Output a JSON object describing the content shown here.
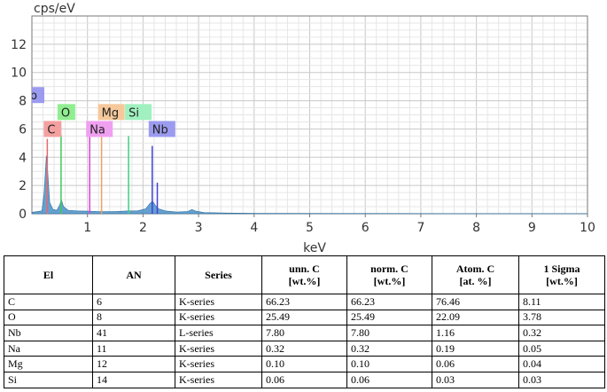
{
  "chart_data": {
    "type": "area",
    "ylabel": "cps/eV",
    "xlabel": "keV",
    "xlim": [
      0,
      10
    ],
    "ylim": [
      0,
      14
    ],
    "x_ticks": [
      "1",
      "2",
      "3",
      "4",
      "5",
      "6",
      "7",
      "8",
      "9",
      "10"
    ],
    "y_ticks": [
      "0",
      "2",
      "4",
      "6",
      "8",
      "10",
      "12"
    ],
    "grid": true,
    "fill_color": "#4a90c8",
    "spectrum": [
      [
        0.0,
        0.1
      ],
      [
        0.18,
        0.2
      ],
      [
        0.22,
        1.5
      ],
      [
        0.26,
        4.1
      ],
      [
        0.28,
        3.2
      ],
      [
        0.32,
        0.8
      ],
      [
        0.38,
        0.3
      ],
      [
        0.45,
        0.25
      ],
      [
        0.5,
        0.6
      ],
      [
        0.53,
        1.0
      ],
      [
        0.57,
        0.5
      ],
      [
        0.65,
        0.25
      ],
      [
        0.8,
        0.2
      ],
      [
        1.0,
        0.18
      ],
      [
        1.2,
        0.16
      ],
      [
        1.5,
        0.15
      ],
      [
        1.74,
        0.2
      ],
      [
        1.9,
        0.2
      ],
      [
        2.05,
        0.35
      ],
      [
        2.12,
        0.7
      ],
      [
        2.17,
        0.9
      ],
      [
        2.22,
        0.6
      ],
      [
        2.28,
        0.35
      ],
      [
        2.4,
        0.2
      ],
      [
        2.6,
        0.12
      ],
      [
        2.8,
        0.15
      ],
      [
        2.88,
        0.3
      ],
      [
        2.95,
        0.18
      ],
      [
        3.1,
        0.08
      ],
      [
        3.5,
        0.05
      ],
      [
        4.0,
        0.03
      ],
      [
        6.0,
        0.02
      ],
      [
        10.0,
        0.01
      ]
    ],
    "lines": [
      {
        "element": "C",
        "energy": 0.277,
        "height": 5.3,
        "color": "#e8686b"
      },
      {
        "element": "O",
        "energy": 0.525,
        "height": 5.6,
        "color": "#3ccc5a"
      },
      {
        "element": "Na",
        "energy": 1.04,
        "height": 5.5,
        "color": "#e040d8"
      },
      {
        "element": "Mg",
        "energy": 1.254,
        "height": 6.1,
        "color": "#f0a060"
      },
      {
        "element": "Si",
        "energy": 1.74,
        "height": 5.5,
        "color": "#40d080"
      },
      {
        "element": "Nb",
        "energy": 2.166,
        "height": 4.8,
        "color": "#4040d8"
      },
      {
        "element": "Nb",
        "energy": 2.257,
        "height": 2.2,
        "color": "#4040d8"
      }
    ],
    "tags": [
      {
        "label": "C",
        "energy": 0.277,
        "level": 6,
        "color": "#f4a0a0"
      },
      {
        "label": "O",
        "energy": 0.525,
        "level": 7.2,
        "color": "#90ee90"
      },
      {
        "label": "Nb",
        "energy": 0.0,
        "level": 8.4,
        "color": "#9b9bf0"
      },
      {
        "label": "Na",
        "energy": 1.04,
        "level": 6,
        "color": "#f0a0f0"
      },
      {
        "label": "Mg",
        "energy": 1.254,
        "level": 7.2,
        "color": "#f6c89a"
      },
      {
        "label": "Si",
        "energy": 1.74,
        "level": 7.2,
        "color": "#a0f0c0"
      },
      {
        "label": "Nb",
        "energy": 2.166,
        "level": 6,
        "color": "#9b9bf0"
      }
    ]
  },
  "table": {
    "headers": [
      "El",
      "AN",
      "Series",
      "unn. C\n[wt.%]",
      "norm. C\n[wt.%]",
      "Atom. C\n[at. %]",
      "1 Sigma\n[wt.%]"
    ],
    "rows": [
      [
        "C",
        "6",
        "K-series",
        "66.23",
        "66.23",
        "76.46",
        "8.11"
      ],
      [
        "O",
        "8",
        "K-series",
        "25.49",
        "25.49",
        "22.09",
        "3.78"
      ],
      [
        "Nb",
        "41",
        "L-series",
        "7.80",
        "7.80",
        "1.16",
        "0.32"
      ],
      [
        "Na",
        "11",
        "K-series",
        "0.32",
        "0.32",
        "0.19",
        "0.05"
      ],
      [
        "Mg",
        "12",
        "K-series",
        "0.10",
        "0.10",
        "0.06",
        "0.04"
      ],
      [
        "Si",
        "14",
        "K-series",
        "0.06",
        "0.06",
        "0.03",
        "0.03"
      ]
    ]
  }
}
